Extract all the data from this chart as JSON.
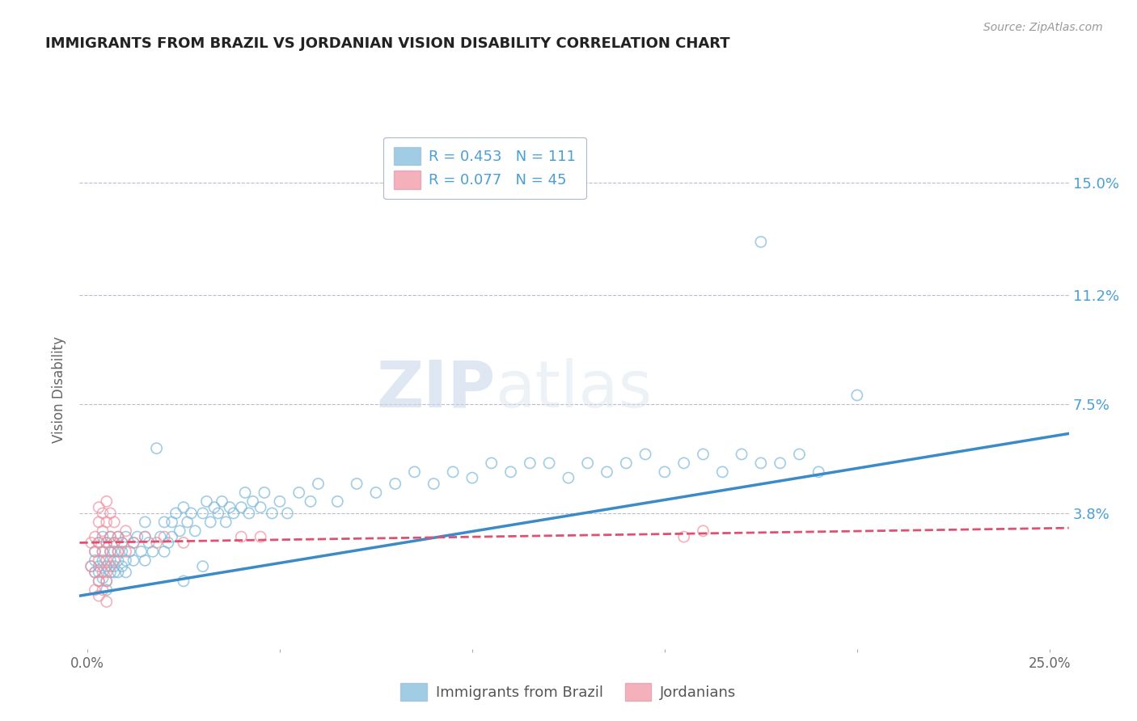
{
  "title": "IMMIGRANTS FROM BRAZIL VS JORDANIAN VISION DISABILITY CORRELATION CHART",
  "source": "Source: ZipAtlas.com",
  "ylabel": "Vision Disability",
  "xlim": [
    -0.002,
    0.255
  ],
  "ylim": [
    -0.008,
    0.168
  ],
  "yticks": [
    0.038,
    0.075,
    0.112,
    0.15
  ],
  "ytick_labels": [
    "3.8%",
    "7.5%",
    "11.2%",
    "15.0%"
  ],
  "xticks": [
    0.0,
    0.05,
    0.1,
    0.15,
    0.2,
    0.25
  ],
  "xtick_labels": [
    "0.0%",
    "",
    "",
    "",
    "",
    "25.0%"
  ],
  "color_blue": "#7ab8d9",
  "color_pink": "#f090a0",
  "color_blue_line": "#3a8bc8",
  "color_pink_line": "#e05070",
  "color_text_blue": "#4a9fd4",
  "color_grid": "#b8bcd0",
  "watermark_zip": "ZIP",
  "watermark_atlas": "atlas",
  "blue_trend_start": 0.01,
  "blue_trend_end": 0.065,
  "pink_trend_start": 0.028,
  "pink_trend_end": 0.033,
  "blue_points": [
    [
      0.001,
      0.02
    ],
    [
      0.002,
      0.018
    ],
    [
      0.002,
      0.025
    ],
    [
      0.002,
      0.022
    ],
    [
      0.003,
      0.015
    ],
    [
      0.003,
      0.028
    ],
    [
      0.003,
      0.02
    ],
    [
      0.003,
      0.018
    ],
    [
      0.004,
      0.022
    ],
    [
      0.004,
      0.016
    ],
    [
      0.004,
      0.025
    ],
    [
      0.004,
      0.03
    ],
    [
      0.005,
      0.02
    ],
    [
      0.005,
      0.028
    ],
    [
      0.005,
      0.015
    ],
    [
      0.005,
      0.012
    ],
    [
      0.006,
      0.025
    ],
    [
      0.006,
      0.018
    ],
    [
      0.006,
      0.022
    ],
    [
      0.006,
      0.03
    ],
    [
      0.007,
      0.02
    ],
    [
      0.007,
      0.028
    ],
    [
      0.007,
      0.025
    ],
    [
      0.007,
      0.018
    ],
    [
      0.008,
      0.022
    ],
    [
      0.008,
      0.03
    ],
    [
      0.008,
      0.018
    ],
    [
      0.008,
      0.025
    ],
    [
      0.009,
      0.028
    ],
    [
      0.009,
      0.02
    ],
    [
      0.009,
      0.025
    ],
    [
      0.01,
      0.022
    ],
    [
      0.01,
      0.018
    ],
    [
      0.01,
      0.03
    ],
    [
      0.011,
      0.025
    ],
    [
      0.012,
      0.028
    ],
    [
      0.012,
      0.022
    ],
    [
      0.013,
      0.03
    ],
    [
      0.014,
      0.025
    ],
    [
      0.015,
      0.022
    ],
    [
      0.015,
      0.03
    ],
    [
      0.015,
      0.035
    ],
    [
      0.016,
      0.028
    ],
    [
      0.017,
      0.025
    ],
    [
      0.018,
      0.06
    ],
    [
      0.019,
      0.03
    ],
    [
      0.02,
      0.025
    ],
    [
      0.02,
      0.035
    ],
    [
      0.021,
      0.028
    ],
    [
      0.022,
      0.035
    ],
    [
      0.022,
      0.03
    ],
    [
      0.023,
      0.038
    ],
    [
      0.024,
      0.032
    ],
    [
      0.025,
      0.04
    ],
    [
      0.026,
      0.035
    ],
    [
      0.027,
      0.038
    ],
    [
      0.028,
      0.032
    ],
    [
      0.03,
      0.038
    ],
    [
      0.031,
      0.042
    ],
    [
      0.032,
      0.035
    ],
    [
      0.033,
      0.04
    ],
    [
      0.034,
      0.038
    ],
    [
      0.035,
      0.042
    ],
    [
      0.036,
      0.035
    ],
    [
      0.037,
      0.04
    ],
    [
      0.038,
      0.038
    ],
    [
      0.04,
      0.04
    ],
    [
      0.041,
      0.045
    ],
    [
      0.042,
      0.038
    ],
    [
      0.043,
      0.042
    ],
    [
      0.045,
      0.04
    ],
    [
      0.046,
      0.045
    ],
    [
      0.048,
      0.038
    ],
    [
      0.05,
      0.042
    ],
    [
      0.052,
      0.038
    ],
    [
      0.055,
      0.045
    ],
    [
      0.058,
      0.042
    ],
    [
      0.06,
      0.048
    ],
    [
      0.065,
      0.042
    ],
    [
      0.07,
      0.048
    ],
    [
      0.075,
      0.045
    ],
    [
      0.08,
      0.048
    ],
    [
      0.085,
      0.052
    ],
    [
      0.09,
      0.048
    ],
    [
      0.095,
      0.052
    ],
    [
      0.1,
      0.05
    ],
    [
      0.105,
      0.055
    ],
    [
      0.11,
      0.052
    ],
    [
      0.115,
      0.055
    ],
    [
      0.12,
      0.055
    ],
    [
      0.125,
      0.05
    ],
    [
      0.13,
      0.055
    ],
    [
      0.135,
      0.052
    ],
    [
      0.14,
      0.055
    ],
    [
      0.145,
      0.058
    ],
    [
      0.15,
      0.052
    ],
    [
      0.155,
      0.055
    ],
    [
      0.16,
      0.058
    ],
    [
      0.165,
      0.052
    ],
    [
      0.17,
      0.058
    ],
    [
      0.175,
      0.055
    ],
    [
      0.18,
      0.055
    ],
    [
      0.185,
      0.058
    ],
    [
      0.19,
      0.052
    ],
    [
      0.175,
      0.13
    ],
    [
      0.2,
      0.078
    ],
    [
      0.025,
      0.015
    ],
    [
      0.03,
      0.02
    ]
  ],
  "pink_points": [
    [
      0.001,
      0.02
    ],
    [
      0.001,
      0.028
    ],
    [
      0.002,
      0.018
    ],
    [
      0.002,
      0.025
    ],
    [
      0.002,
      0.03
    ],
    [
      0.003,
      0.022
    ],
    [
      0.003,
      0.028
    ],
    [
      0.003,
      0.035
    ],
    [
      0.003,
      0.04
    ],
    [
      0.003,
      0.015
    ],
    [
      0.004,
      0.025
    ],
    [
      0.004,
      0.032
    ],
    [
      0.004,
      0.038
    ],
    [
      0.004,
      0.018
    ],
    [
      0.005,
      0.028
    ],
    [
      0.005,
      0.035
    ],
    [
      0.005,
      0.022
    ],
    [
      0.005,
      0.042
    ],
    [
      0.005,
      0.015
    ],
    [
      0.005,
      0.018
    ],
    [
      0.006,
      0.025
    ],
    [
      0.006,
      0.03
    ],
    [
      0.006,
      0.038
    ],
    [
      0.006,
      0.02
    ],
    [
      0.007,
      0.028
    ],
    [
      0.007,
      0.035
    ],
    [
      0.007,
      0.022
    ],
    [
      0.008,
      0.03
    ],
    [
      0.008,
      0.025
    ],
    [
      0.009,
      0.028
    ],
    [
      0.01,
      0.025
    ],
    [
      0.01,
      0.032
    ],
    [
      0.012,
      0.028
    ],
    [
      0.015,
      0.03
    ],
    [
      0.018,
      0.028
    ],
    [
      0.02,
      0.03
    ],
    [
      0.025,
      0.028
    ],
    [
      0.04,
      0.03
    ],
    [
      0.045,
      0.03
    ],
    [
      0.155,
      0.03
    ],
    [
      0.16,
      0.032
    ],
    [
      0.002,
      0.012
    ],
    [
      0.003,
      0.01
    ],
    [
      0.004,
      0.012
    ],
    [
      0.005,
      0.008
    ]
  ]
}
